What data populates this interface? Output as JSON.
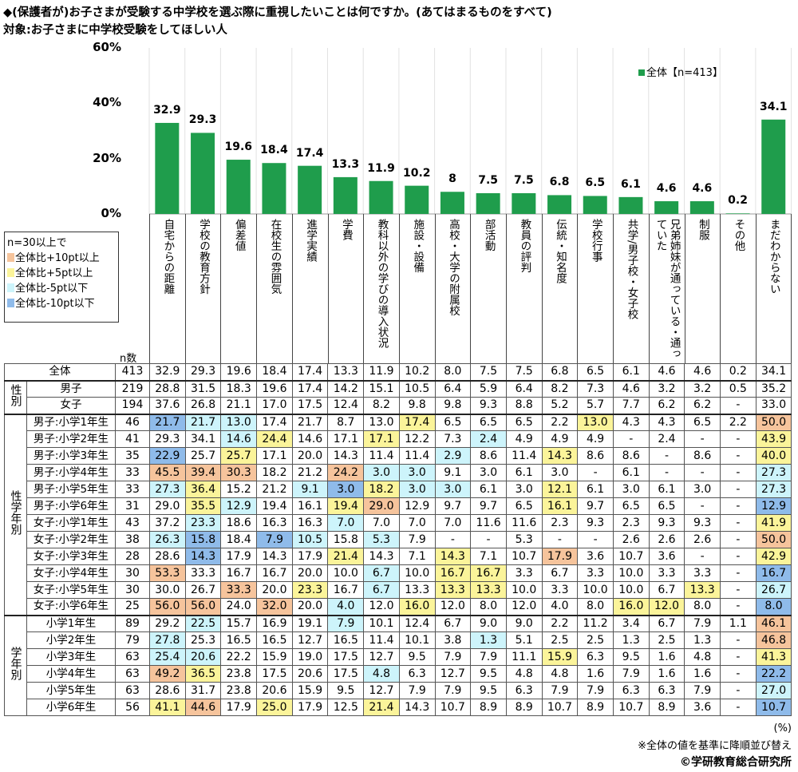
{
  "title": "◆(保護者が)お子さまが受験する中学校を選ぶ際に重視したいことは何ですか。(あてはまるものをすべて)",
  "subtitle": "対象:お子さまに中学校受験をしてほしい人",
  "chart_data": {
    "type": "bar",
    "ylim": [
      0,
      60
    ],
    "yticks": [
      "0%",
      "20%",
      "40%",
      "60%"
    ],
    "grid": "vertical separators",
    "legend": {
      "label": "全体【n=413】",
      "placement": "top-right"
    },
    "bar_color": "#1f9d4c",
    "categories": [
      "自宅からの距離",
      "学校の教育方針",
      "偏差値",
      "在校生の雰囲気",
      "進学実績",
      "学費",
      "教科以外の学びの導入状況",
      "施設・設備",
      "高校・大学の附属校",
      "部活動",
      "教員の評判",
      "伝統・知名度",
      "学校行事",
      "共学/男子校・女子校",
      "兄弟姉妹が通っている・通っていた",
      "制服",
      "その他",
      "まだわからない"
    ],
    "values": [
      32.9,
      29.3,
      19.6,
      18.4,
      17.4,
      13.3,
      11.9,
      10.2,
      8.0,
      7.5,
      7.5,
      6.8,
      6.5,
      6.1,
      4.6,
      4.6,
      0.2,
      34.1
    ]
  },
  "highlight_legend": {
    "heading": "n=30以上で",
    "items": [
      {
        "key": "+10",
        "label": "全体比+10pt以上",
        "color": "#f6c49c"
      },
      {
        "key": "+5",
        "label": "全体比+5pt以上",
        "color": "#fbf49a"
      },
      {
        "key": "-5",
        "label": "全体比-5pt以下",
        "color": "#cdf4fb"
      },
      {
        "key": "-10",
        "label": "全体比-10pt以下",
        "color": "#8fbbea"
      }
    ]
  },
  "table": {
    "n_header": "n数",
    "groups": [
      {
        "label": "",
        "rows": [
          {
            "label": "全体",
            "n": "413",
            "values": [
              "32.9",
              "29.3",
              "19.6",
              "18.4",
              "17.4",
              "13.3",
              "11.9",
              "10.2",
              "8.0",
              "7.5",
              "7.5",
              "6.8",
              "6.5",
              "6.1",
              "4.6",
              "4.6",
              "0.2",
              "34.1"
            ],
            "hl": {}
          }
        ]
      },
      {
        "label": "性別",
        "rows": [
          {
            "label": "男子",
            "n": "219",
            "values": [
              "28.8",
              "31.5",
              "18.3",
              "19.6",
              "17.4",
              "14.2",
              "15.1",
              "10.5",
              "6.4",
              "5.9",
              "6.4",
              "8.2",
              "7.3",
              "4.6",
              "3.2",
              "3.2",
              "0.5",
              "35.2"
            ],
            "hl": {}
          },
          {
            "label": "女子",
            "n": "194",
            "values": [
              "37.6",
              "26.8",
              "21.1",
              "17.0",
              "17.5",
              "12.4",
              "8.2",
              "9.8",
              "9.8",
              "9.3",
              "8.8",
              "5.2",
              "5.7",
              "7.7",
              "6.2",
              "6.2",
              "-",
              "33.0"
            ],
            "hl": {}
          }
        ]
      },
      {
        "label": "性学年別",
        "rows": [
          {
            "label": "男子:小学1年生",
            "n": "46",
            "values": [
              "21.7",
              "21.7",
              "13.0",
              "17.4",
              "21.7",
              "8.7",
              "13.0",
              "17.4",
              "6.5",
              "6.5",
              "6.5",
              "2.2",
              "13.0",
              "4.3",
              "4.3",
              "6.5",
              "2.2",
              "50.0"
            ],
            "hl": {
              "0": "-10",
              "1": "-5",
              "2": "-5",
              "7": "+5",
              "12": "+5",
              "17": "+10"
            }
          },
          {
            "label": "男子:小学2年生",
            "n": "41",
            "values": [
              "29.3",
              "34.1",
              "14.6",
              "24.4",
              "14.6",
              "17.1",
              "17.1",
              "12.2",
              "7.3",
              "2.4",
              "4.9",
              "4.9",
              "4.9",
              "-",
              "2.4",
              "-",
              "-",
              "43.9"
            ],
            "hl": {
              "2": "-5",
              "3": "+5",
              "6": "+5",
              "9": "-5",
              "17": "+5"
            }
          },
          {
            "label": "男子:小学3年生",
            "n": "35",
            "values": [
              "22.9",
              "25.7",
              "25.7",
              "17.1",
              "20.0",
              "14.3",
              "11.4",
              "11.4",
              "2.9",
              "8.6",
              "11.4",
              "14.3",
              "8.6",
              "8.6",
              "-",
              "8.6",
              "-",
              "40.0"
            ],
            "hl": {
              "0": "-10",
              "2": "+5",
              "8": "-5",
              "11": "+5",
              "17": "+5"
            }
          },
          {
            "label": "男子:小学4年生",
            "n": "33",
            "values": [
              "45.5",
              "39.4",
              "30.3",
              "18.2",
              "21.2",
              "24.2",
              "3.0",
              "3.0",
              "9.1",
              "3.0",
              "6.1",
              "3.0",
              "-",
              "6.1",
              "-",
              "-",
              "-",
              "27.3"
            ],
            "hl": {
              "0": "+10",
              "1": "+10",
              "2": "+10",
              "5": "+10",
              "6": "-5",
              "7": "-5",
              "17": "-5"
            }
          },
          {
            "label": "男子:小学5年生",
            "n": "33",
            "values": [
              "27.3",
              "36.4",
              "15.2",
              "21.2",
              "9.1",
              "3.0",
              "18.2",
              "3.0",
              "3.0",
              "6.1",
              "3.0",
              "12.1",
              "6.1",
              "3.0",
              "6.1",
              "3.0",
              "-",
              "27.3"
            ],
            "hl": {
              "0": "-5",
              "1": "+5",
              "4": "-5",
              "5": "-10",
              "6": "+5",
              "7": "-5",
              "8": "-5",
              "11": "+5",
              "17": "-5"
            }
          },
          {
            "label": "男子:小学6年生",
            "n": "31",
            "values": [
              "29.0",
              "35.5",
              "12.9",
              "19.4",
              "16.1",
              "19.4",
              "29.0",
              "12.9",
              "9.7",
              "9.7",
              "6.5",
              "16.1",
              "9.7",
              "6.5",
              "6.5",
              "-",
              "-",
              "12.9"
            ],
            "hl": {
              "1": "+5",
              "2": "-5",
              "5": "+5",
              "6": "+10",
              "11": "+5",
              "17": "-10"
            }
          },
          {
            "label": "女子:小学1年生",
            "n": "43",
            "values": [
              "37.2",
              "23.3",
              "18.6",
              "16.3",
              "16.3",
              "7.0",
              "7.0",
              "7.0",
              "7.0",
              "11.6",
              "11.6",
              "2.3",
              "9.3",
              "2.3",
              "9.3",
              "9.3",
              "-",
              "41.9"
            ],
            "hl": {
              "1": "-5",
              "5": "-5",
              "17": "+5"
            }
          },
          {
            "label": "女子:小学2年生",
            "n": "38",
            "values": [
              "26.3",
              "15.8",
              "18.4",
              "7.9",
              "10.5",
              "15.8",
              "5.3",
              "7.9",
              "-",
              "-",
              "5.3",
              "-",
              "-",
              "2.6",
              "2.6",
              "2.6",
              "-",
              "50.0"
            ],
            "hl": {
              "0": "-5",
              "1": "-10",
              "3": "-10",
              "4": "-5",
              "6": "-5",
              "17": "+10"
            }
          },
          {
            "label": "女子:小学3年生",
            "n": "28",
            "values": [
              "28.6",
              "14.3",
              "17.9",
              "14.3",
              "17.9",
              "21.4",
              "14.3",
              "7.1",
              "14.3",
              "7.1",
              "10.7",
              "17.9",
              "3.6",
              "10.7",
              "3.6",
              "-",
              "-",
              "42.9"
            ],
            "hl": {
              "1": "-10",
              "5": "+5",
              "8": "+5",
              "11": "+10",
              "17": "+5"
            }
          },
          {
            "label": "女子:小学4年生",
            "n": "30",
            "values": [
              "53.3",
              "33.3",
              "16.7",
              "16.7",
              "20.0",
              "10.0",
              "6.7",
              "10.0",
              "16.7",
              "16.7",
              "3.3",
              "6.7",
              "3.3",
              "10.0",
              "3.3",
              "3.3",
              "-",
              "16.7"
            ],
            "hl": {
              "0": "+10",
              "6": "-5",
              "8": "+5",
              "9": "+5",
              "17": "-10"
            }
          },
          {
            "label": "女子:小学5年生",
            "n": "30",
            "values": [
              "30.0",
              "26.7",
              "33.3",
              "20.0",
              "23.3",
              "16.7",
              "6.7",
              "13.3",
              "13.3",
              "13.3",
              "10.0",
              "3.3",
              "10.0",
              "10.0",
              "6.7",
              "13.3",
              "-",
              "26.7"
            ],
            "hl": {
              "2": "+10",
              "4": "+5",
              "6": "-5",
              "8": "+5",
              "9": "+5",
              "15": "+5",
              "17": "-5"
            }
          },
          {
            "label": "女子:小学6年生",
            "n": "25",
            "values": [
              "56.0",
              "56.0",
              "24.0",
              "32.0",
              "20.0",
              "4.0",
              "12.0",
              "16.0",
              "12.0",
              "8.0",
              "12.0",
              "4.0",
              "8.0",
              "16.0",
              "12.0",
              "8.0",
              "-",
              "8.0"
            ],
            "hl": {
              "0": "+10",
              "1": "+10",
              "3": "+10",
              "5": "-5",
              "7": "+5",
              "13": "+5",
              "14": "+5",
              "17": "-10"
            }
          }
        ]
      },
      {
        "label": "学年別",
        "rows": [
          {
            "label": "小学1年生",
            "n": "89",
            "values": [
              "29.2",
              "22.5",
              "15.7",
              "16.9",
              "19.1",
              "7.9",
              "10.1",
              "12.4",
              "6.7",
              "9.0",
              "9.0",
              "2.2",
              "11.2",
              "3.4",
              "6.7",
              "7.9",
              "1.1",
              "46.1"
            ],
            "hl": {
              "1": "-5",
              "5": "-5",
              "17": "+10"
            }
          },
          {
            "label": "小学2年生",
            "n": "79",
            "values": [
              "27.8",
              "25.3",
              "16.5",
              "16.5",
              "12.7",
              "16.5",
              "11.4",
              "10.1",
              "3.8",
              "1.3",
              "5.1",
              "2.5",
              "2.5",
              "1.3",
              "2.5",
              "1.3",
              "-",
              "46.8"
            ],
            "hl": {
              "0": "-5",
              "9": "-5",
              "17": "+10"
            }
          },
          {
            "label": "小学3年生",
            "n": "63",
            "values": [
              "25.4",
              "20.6",
              "22.2",
              "15.9",
              "19.0",
              "17.5",
              "12.7",
              "9.5",
              "7.9",
              "7.9",
              "11.1",
              "15.9",
              "6.3",
              "9.5",
              "1.6",
              "4.8",
              "-",
              "41.3"
            ],
            "hl": {
              "0": "-5",
              "1": "-5",
              "11": "+5",
              "17": "+5"
            }
          },
          {
            "label": "小学4年生",
            "n": "63",
            "values": [
              "49.2",
              "36.5",
              "23.8",
              "17.5",
              "20.6",
              "17.5",
              "4.8",
              "6.3",
              "12.7",
              "9.5",
              "4.8",
              "4.8",
              "1.6",
              "7.9",
              "1.6",
              "1.6",
              "-",
              "22.2"
            ],
            "hl": {
              "0": "+10",
              "1": "+5",
              "6": "-5",
              "17": "-10"
            }
          },
          {
            "label": "小学5年生",
            "n": "63",
            "values": [
              "28.6",
              "31.7",
              "23.8",
              "20.6",
              "15.9",
              "9.5",
              "12.7",
              "7.9",
              "7.9",
              "9.5",
              "6.3",
              "7.9",
              "7.9",
              "6.3",
              "6.3",
              "7.9",
              "-",
              "27.0"
            ],
            "hl": {
              "17": "-5"
            }
          },
          {
            "label": "小学6年生",
            "n": "56",
            "values": [
              "41.1",
              "44.6",
              "17.9",
              "25.0",
              "17.9",
              "12.5",
              "21.4",
              "14.3",
              "10.7",
              "8.9",
              "8.9",
              "10.7",
              "8.9",
              "10.7",
              "8.9",
              "3.6",
              "-",
              "10.7"
            ],
            "hl": {
              "0": "+5",
              "1": "+10",
              "3": "+5",
              "6": "+5",
              "17": "-10"
            }
          }
        ]
      }
    ]
  },
  "footer": {
    "unit": "(%)",
    "note": "※全体の値を基準に降順並び替え",
    "copyright": "©学研教育総合研究所"
  }
}
